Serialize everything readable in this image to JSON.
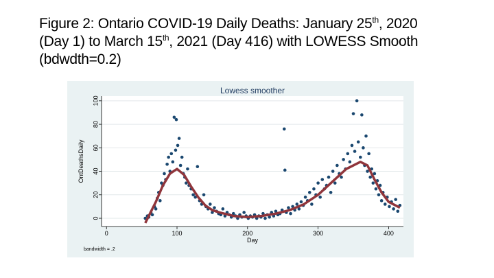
{
  "title_lines": [
    [
      {
        "text": "Figure 2: Ontario COVID-19 Daily Deaths: January 25"
      },
      {
        "text": "th",
        "sup": true
      },
      {
        "text": ", 2020"
      }
    ],
    [
      {
        "text": "(Day 1) to March 15"
      },
      {
        "text": "th",
        "sup": true
      },
      {
        "text": ", 2021 (Day 416) with LOWESS Smooth"
      }
    ],
    [
      {
        "text": "(bdwdth=0.2)"
      }
    ]
  ],
  "chart_data": {
    "type": "scatter",
    "title": "Lowess smoother",
    "x_label": "Day",
    "y_label": "OntDeathsDaily",
    "note": "bandwidth = .2",
    "xlim": [
      -7,
      421
    ],
    "ylim": [
      -7,
      104
    ],
    "xticks": [
      0,
      100,
      200,
      300,
      400
    ],
    "yticks": [
      0,
      20,
      40,
      60,
      80,
      100
    ],
    "grid": true,
    "color": "#1a476f",
    "x": [
      55,
      58,
      60,
      63,
      65,
      68,
      70,
      72,
      74,
      76,
      78,
      80,
      82,
      84,
      86,
      88,
      90,
      92,
      94,
      96,
      98,
      99,
      101,
      103,
      105,
      107,
      109,
      111,
      113,
      115,
      117,
      120,
      123,
      126,
      129,
      132,
      135,
      138,
      141,
      144,
      147,
      150,
      153,
      156,
      159,
      162,
      165,
      168,
      171,
      174,
      177,
      180,
      183,
      186,
      189,
      192,
      195,
      198,
      201,
      204,
      207,
      210,
      213,
      216,
      219,
      222,
      225,
      228,
      231,
      234,
      237,
      240,
      243,
      246,
      249,
      252,
      253,
      255,
      258,
      261,
      264,
      267,
      270,
      273,
      276,
      279,
      282,
      285,
      288,
      291,
      294,
      297,
      300,
      303,
      306,
      309,
      312,
      315,
      318,
      321,
      324,
      327,
      330,
      333,
      336,
      339,
      342,
      345,
      348,
      350,
      352,
      355,
      357,
      360,
      362,
      364,
      366,
      368,
      370,
      372,
      374,
      376,
      378,
      380,
      382,
      384,
      386,
      388,
      390,
      392,
      395,
      398,
      401,
      404,
      407,
      410,
      413,
      416
    ],
    "values": [
      0,
      2,
      1,
      5,
      3,
      10,
      8,
      17,
      22,
      15,
      30,
      28,
      38,
      33,
      46,
      52,
      40,
      55,
      48,
      86,
      58,
      84,
      62,
      68,
      45,
      52,
      38,
      35,
      30,
      42,
      28,
      25,
      20,
      18,
      44,
      15,
      12,
      20,
      10,
      8,
      12,
      5,
      9,
      6,
      4,
      3,
      8,
      2,
      5,
      3,
      1,
      4,
      2,
      0,
      3,
      1,
      5,
      2,
      0,
      2,
      1,
      3,
      0,
      2,
      1,
      4,
      0,
      3,
      1,
      5,
      2,
      6,
      3,
      4,
      7,
      76,
      41,
      5,
      9,
      4,
      10,
      7,
      12,
      8,
      14,
      11,
      18,
      15,
      22,
      12,
      25,
      20,
      30,
      18,
      33,
      25,
      28,
      35,
      22,
      40,
      30,
      45,
      38,
      35,
      50,
      42,
      55,
      48,
      62,
      89,
      57,
      100,
      65,
      52,
      88,
      60,
      45,
      70,
      40,
      55,
      35,
      42,
      30,
      38,
      25,
      32,
      20,
      28,
      15,
      22,
      12,
      18,
      10,
      14,
      8,
      16,
      6,
      11
    ],
    "smooth_color": "#90353b",
    "smooth_x": [
      55,
      60,
      70,
      80,
      90,
      100,
      110,
      120,
      130,
      140,
      150,
      160,
      180,
      200,
      220,
      240,
      260,
      280,
      300,
      320,
      340,
      360,
      370,
      380,
      390,
      400,
      416
    ],
    "smooth_values": [
      -4,
      2,
      14,
      28,
      38,
      42,
      37,
      27,
      18,
      11,
      7,
      5,
      2,
      1,
      2,
      4,
      7,
      12,
      20,
      31,
      42,
      48,
      45,
      33,
      22,
      14,
      9
    ]
  }
}
